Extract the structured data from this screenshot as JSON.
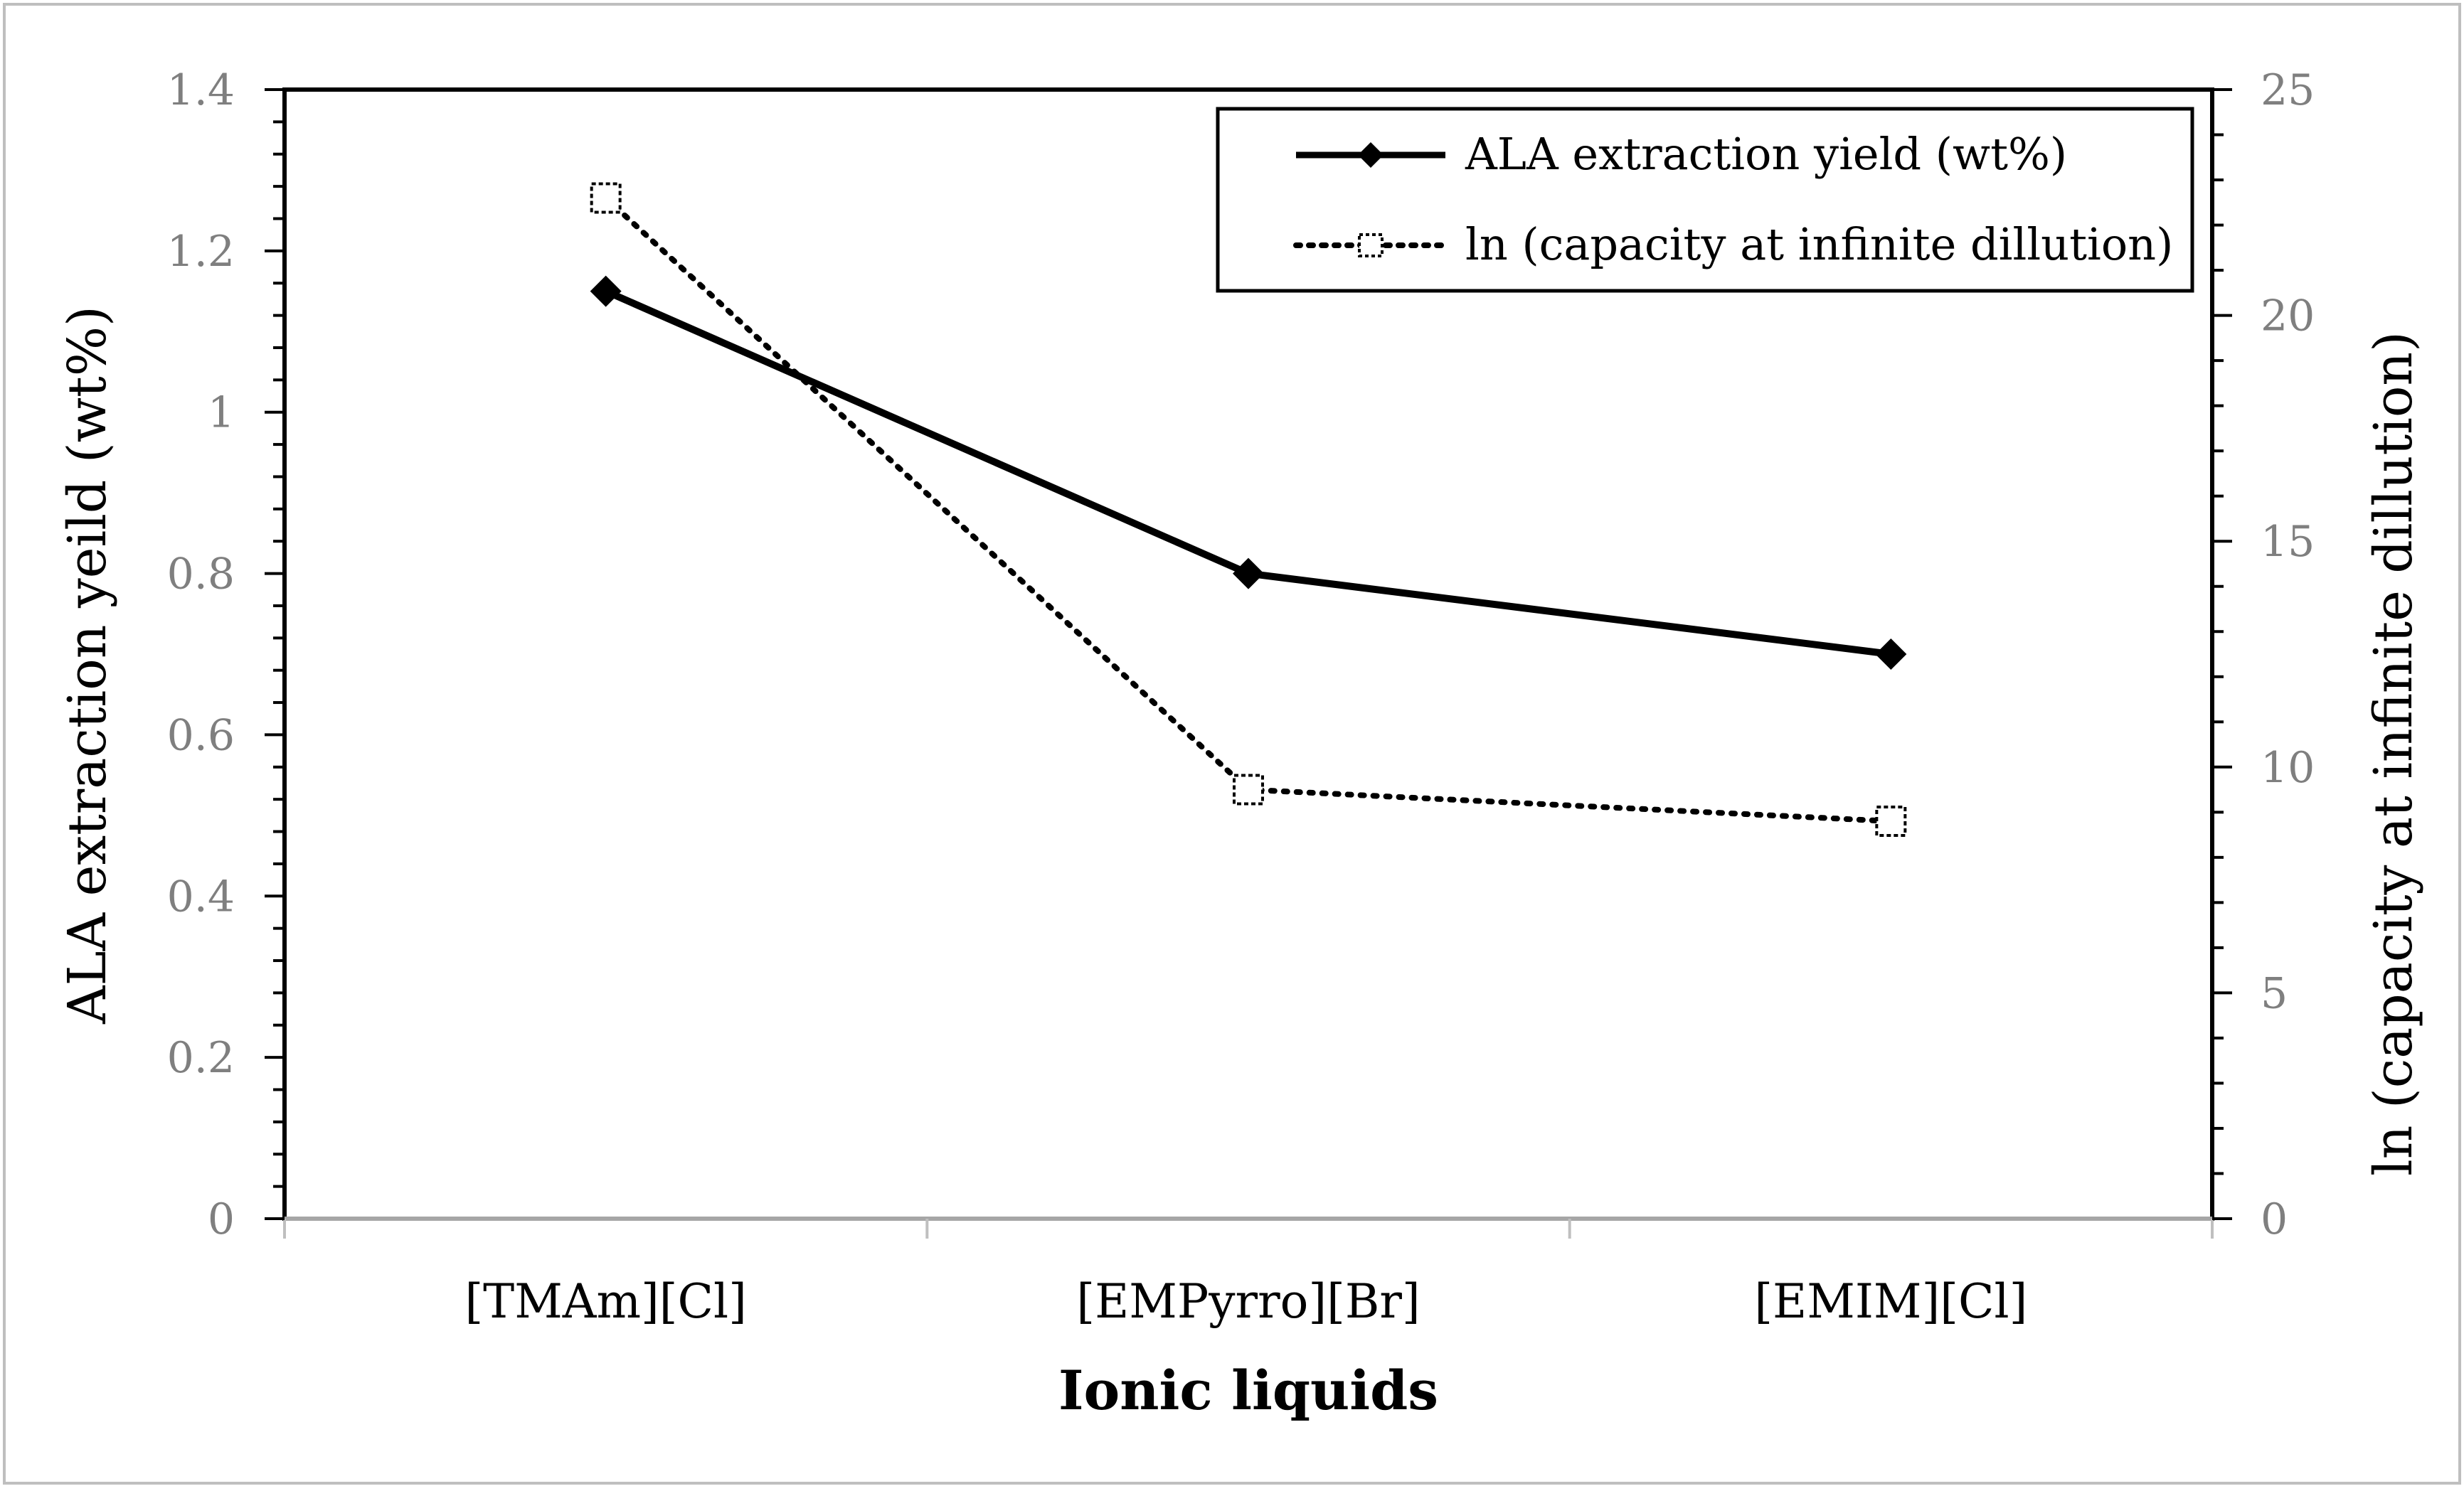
{
  "chart_data": {
    "type": "line",
    "categories": [
      "[TMAm][Cl]",
      "[EMPyrro][Br]",
      "[EMIM][Cl]"
    ],
    "xlabel": "Ionic liquids",
    "ylabel": "ALA extraction yeild (wt%)",
    "y2label": "ln (capacity at infinite dillution)",
    "ylim": [
      0,
      1.4
    ],
    "y2lim": [
      0,
      25
    ],
    "yticks": [
      "0",
      "0.2",
      "0.4",
      "0.6",
      "0.8",
      "1",
      "1.2",
      "1.4"
    ],
    "y2ticks": [
      "0",
      "5",
      "10",
      "15",
      "20",
      "25"
    ],
    "grid": false,
    "legend_position": "top-right",
    "series": [
      {
        "name": "ALA extraction yield (wt%)",
        "axis": "left",
        "style": "solid",
        "marker": "filled-diamond",
        "color": "#000000",
        "values": [
          1.15,
          0.8,
          0.7
        ]
      },
      {
        "name": "ln (capacity at infinite dillution)",
        "axis": "right",
        "style": "dotted",
        "marker": "open-square",
        "color": "#000000",
        "values": [
          22.6,
          9.5,
          8.8
        ]
      }
    ]
  }
}
